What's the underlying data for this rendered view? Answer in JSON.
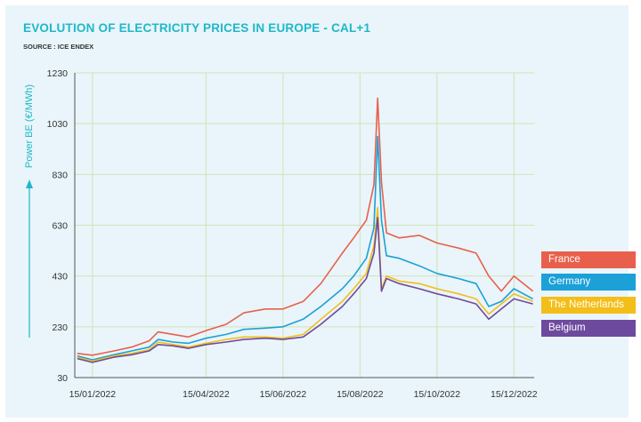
{
  "header": {
    "title": "EVOLUTION OF ELECTRICITY PRICES IN EUROPE - CAL+1",
    "source": "SOURCE : ICE ENDEX"
  },
  "chart_data": {
    "type": "line",
    "title": "EVOLUTION OF ELECTRICITY PRICES IN EUROPE - CAL+1",
    "subtitle": "SOURCE : ICE ENDEX",
    "xlabel": "",
    "ylabel": "Power BE (€/MWh)",
    "ylim": [
      30,
      1230
    ],
    "yticks": [
      30,
      230,
      430,
      630,
      830,
      1030,
      1230
    ],
    "xlim": [
      "2022-01-01",
      "2022-12-31"
    ],
    "xticks": [
      "15/01/2022",
      "15/04/2022",
      "15/06/2022",
      "15/08/2022",
      "15/10/2022",
      "15/12/2022"
    ],
    "grid": true,
    "legend_position": "right",
    "series": [
      {
        "name": "France",
        "color": "#e8604c",
        "x": [
          "2022-01-03",
          "2022-01-15",
          "2022-02-01",
          "2022-02-15",
          "2022-03-01",
          "2022-03-08",
          "2022-03-20",
          "2022-04-01",
          "2022-04-15",
          "2022-05-01",
          "2022-05-15",
          "2022-06-01",
          "2022-06-15",
          "2022-07-01",
          "2022-07-15",
          "2022-08-01",
          "2022-08-10",
          "2022-08-20",
          "2022-08-26",
          "2022-08-29",
          "2022-09-01",
          "2022-09-05",
          "2022-09-15",
          "2022-10-01",
          "2022-10-15",
          "2022-11-01",
          "2022-11-15",
          "2022-11-25",
          "2022-12-05",
          "2022-12-15",
          "2022-12-30"
        ],
        "values": [
          125,
          118,
          135,
          150,
          175,
          210,
          200,
          190,
          215,
          240,
          285,
          300,
          300,
          330,
          400,
          520,
          580,
          650,
          790,
          1130,
          800,
          600,
          580,
          590,
          560,
          540,
          520,
          430,
          370,
          430,
          370
        ]
      },
      {
        "name": "Germany",
        "color": "#1ba0d8",
        "x": [
          "2022-01-03",
          "2022-01-15",
          "2022-02-01",
          "2022-02-15",
          "2022-03-01",
          "2022-03-08",
          "2022-03-20",
          "2022-04-01",
          "2022-04-15",
          "2022-05-01",
          "2022-05-15",
          "2022-06-01",
          "2022-06-15",
          "2022-07-01",
          "2022-07-15",
          "2022-08-01",
          "2022-08-10",
          "2022-08-20",
          "2022-08-26",
          "2022-08-29",
          "2022-09-01",
          "2022-09-05",
          "2022-09-15",
          "2022-10-01",
          "2022-10-15",
          "2022-11-01",
          "2022-11-15",
          "2022-11-25",
          "2022-12-05",
          "2022-12-15",
          "2022-12-30"
        ],
        "values": [
          115,
          100,
          120,
          135,
          150,
          180,
          170,
          165,
          185,
          200,
          220,
          225,
          230,
          260,
          310,
          380,
          430,
          500,
          620,
          980,
          650,
          510,
          500,
          470,
          440,
          420,
          400,
          310,
          330,
          380,
          340
        ]
      },
      {
        "name": "The Netherlands",
        "color": "#f4be19",
        "x": [
          "2022-01-03",
          "2022-01-15",
          "2022-02-01",
          "2022-02-15",
          "2022-03-01",
          "2022-03-08",
          "2022-03-20",
          "2022-04-01",
          "2022-04-15",
          "2022-05-01",
          "2022-05-15",
          "2022-06-01",
          "2022-06-15",
          "2022-07-01",
          "2022-07-15",
          "2022-08-01",
          "2022-08-10",
          "2022-08-20",
          "2022-08-26",
          "2022-08-29",
          "2022-09-01",
          "2022-09-05",
          "2022-09-15",
          "2022-10-01",
          "2022-10-15",
          "2022-11-01",
          "2022-11-15",
          "2022-11-25",
          "2022-12-05",
          "2022-12-15",
          "2022-12-30"
        ],
        "values": [
          110,
          95,
          115,
          125,
          140,
          170,
          160,
          150,
          165,
          180,
          190,
          190,
          185,
          200,
          260,
          330,
          380,
          440,
          550,
          700,
          380,
          430,
          410,
          400,
          380,
          360,
          340,
          280,
          320,
          360,
          330
        ]
      },
      {
        "name": "Belgium",
        "color": "#6e4a9e",
        "x": [
          "2022-01-03",
          "2022-01-15",
          "2022-02-01",
          "2022-02-15",
          "2022-03-01",
          "2022-03-08",
          "2022-03-20",
          "2022-04-01",
          "2022-04-15",
          "2022-05-01",
          "2022-05-15",
          "2022-06-01",
          "2022-06-15",
          "2022-07-01",
          "2022-07-15",
          "2022-08-01",
          "2022-08-10",
          "2022-08-20",
          "2022-08-26",
          "2022-08-29",
          "2022-09-01",
          "2022-09-05",
          "2022-09-15",
          "2022-10-01",
          "2022-10-15",
          "2022-11-01",
          "2022-11-15",
          "2022-11-25",
          "2022-12-05",
          "2022-12-15",
          "2022-12-30"
        ],
        "values": [
          105,
          90,
          110,
          120,
          135,
          160,
          155,
          145,
          160,
          170,
          180,
          185,
          180,
          190,
          240,
          310,
          360,
          420,
          520,
          660,
          370,
          420,
          400,
          380,
          360,
          340,
          320,
          260,
          300,
          340,
          320
        ]
      }
    ]
  }
}
